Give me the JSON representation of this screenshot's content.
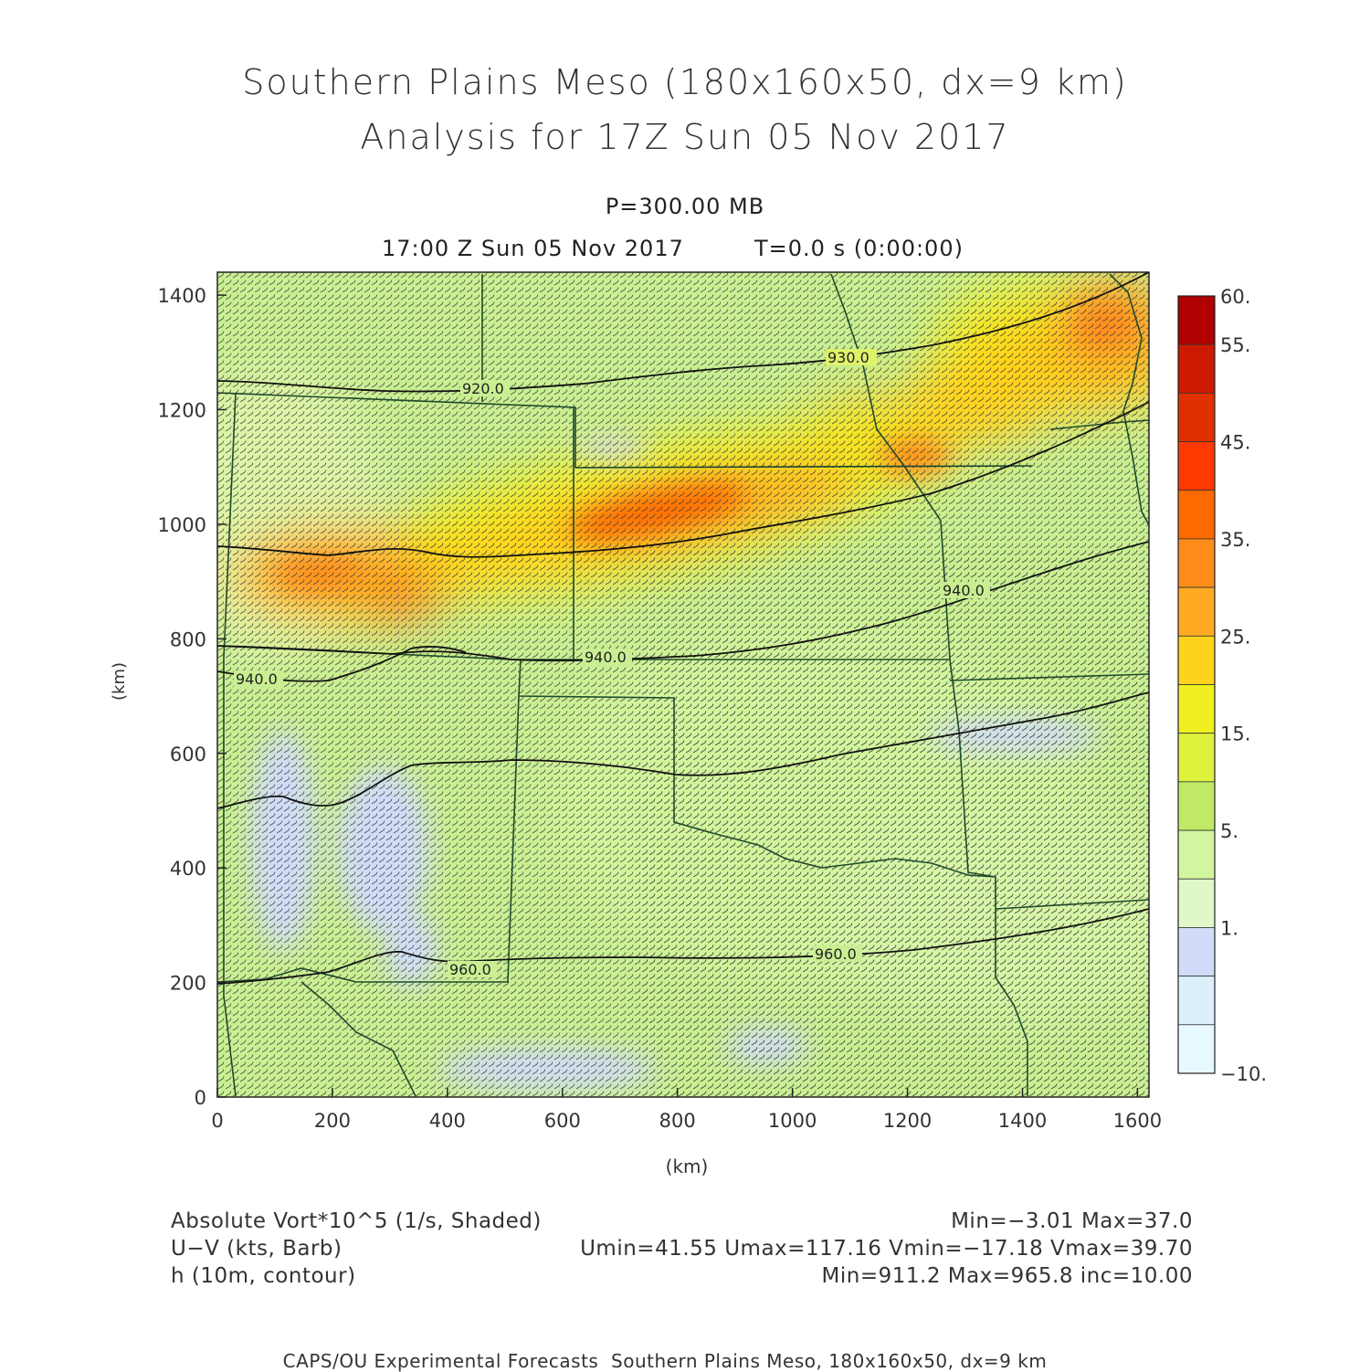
{
  "header": {
    "title_line1": "Southern Plains Meso (180x160x50, dx=9 km)",
    "title_line2": "Analysis for 17Z Sun 05 Nov 2017",
    "pressure": "P=300.00 MB",
    "valid_time": "17:00 Z Sun 05 Nov 2017",
    "elapsed": "T=0.0 s (0:00:00)"
  },
  "axes": {
    "x_label": "(km)",
    "y_label": "(km)",
    "x_ticks": [
      "0",
      "200",
      "400",
      "600",
      "800",
      "1000",
      "1200",
      "1400",
      "1600"
    ],
    "y_ticks": [
      "0",
      "200",
      "400",
      "600",
      "800",
      "1000",
      "1200",
      "1400"
    ],
    "x_range_km": [
      0,
      1620
    ],
    "y_range_km": [
      0,
      1440
    ]
  },
  "colorbar": {
    "labels": [
      "60.",
      "55.",
      "45.",
      "35.",
      "25.",
      "15.",
      "5.",
      "1.",
      "−10."
    ],
    "colors": [
      "#b00000",
      "#cc1a00",
      "#e03000",
      "#ff3a00",
      "#ff6a00",
      "#ff8c1a",
      "#ffaa22",
      "#ffd21e",
      "#f0f020",
      "#ddf23c",
      "#c0ea66",
      "#d2f5a0",
      "#e0f8c8",
      "#d2dcf8",
      "#dcf0fc",
      "#e8f8ff"
    ]
  },
  "contours": {
    "labels": [
      "920.0",
      "930.0",
      "940.0",
      "940.0",
      "940.0",
      "960.0",
      "960.0"
    ]
  },
  "legend": {
    "field1_name": "Absolute Vort*10^5 (1/s, Shaded)",
    "field1_stats": "Min=−3.01 Max=37.0",
    "field2_name": "U−V (kts, Barb)",
    "field2_stats": "Umin=41.55 Umax=117.16 Vmin=−17.18 Vmax=39.70",
    "field3_name": "h (10m, contour)",
    "field3_stats": "Min=911.2 Max=965.8 inc=10.00"
  },
  "footer": {
    "credit": "CAPS/OU Experimental Forecasts  Southern Plains Meso, 180x160x50, dx=9 km"
  }
}
